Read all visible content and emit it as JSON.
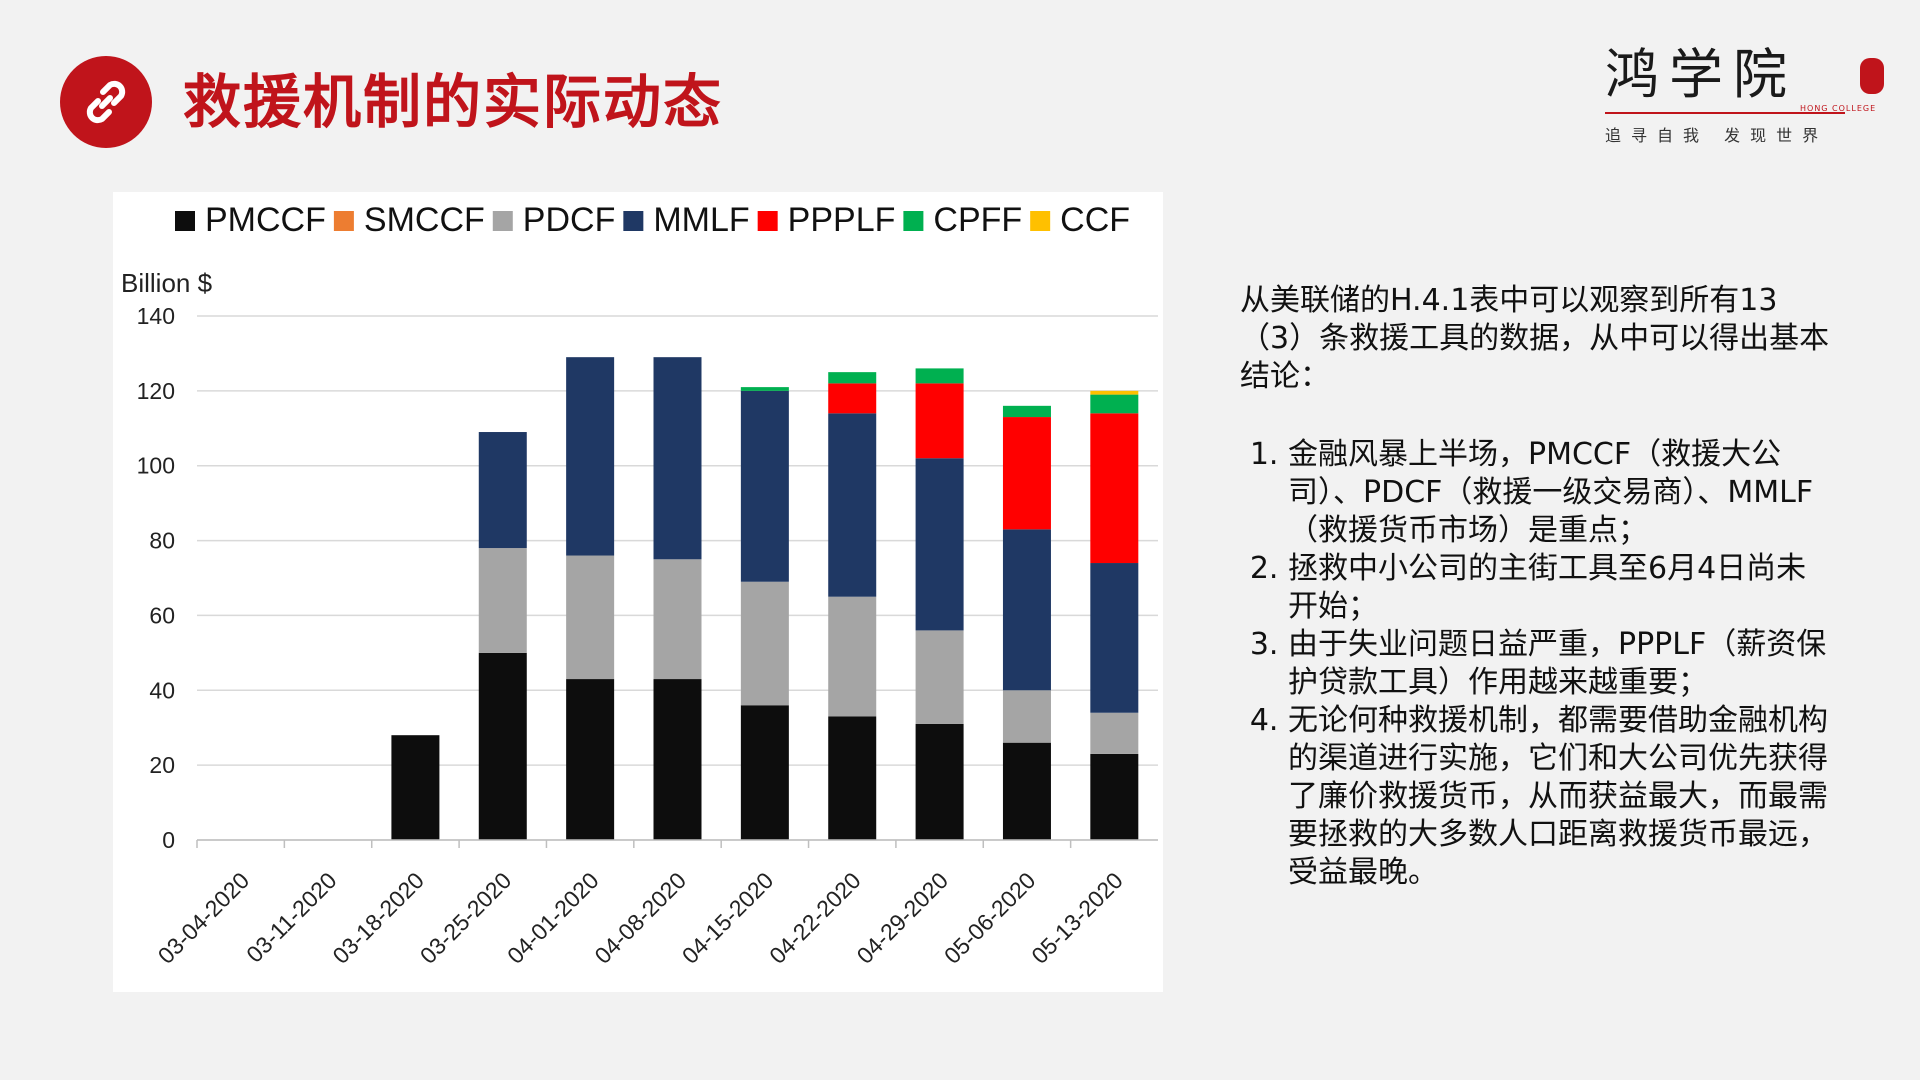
{
  "header": {
    "title": "救援机制的实际动态",
    "icon": "link-icon",
    "accent_color": "#c0141b"
  },
  "logo": {
    "name": "鸿学院",
    "sub": "HONG COLLEGE",
    "slogan": "追寻自我 发现世界"
  },
  "text": {
    "intro": "从美联储的H.4.1表中可以观察到所有13（3）条救援工具的数据，从中可以得出基本结论：",
    "points": [
      "金融风暴上半场，PMCCF（救援大公司）、PDCF（救援一级交易商）、MMLF（救援货币市场）是重点；",
      "拯救中小公司的主街工具至6月4日尚未开始；",
      "由于失业问题日益严重，PPPLF（薪资保护贷款工具）作用越来越重要；",
      "无论何种救援机制，都需要借助金融机构的渠道进行实施，它们和大公司优先获得了廉价救援货币，从而获益最大，而最需要拯救的大多数人口距离救援货币最远，受益最晚。"
    ]
  },
  "chart_data": {
    "type": "bar",
    "stacked": true,
    "ylabel": "Billion $",
    "ylim": [
      0,
      140
    ],
    "yticks": [
      0,
      20,
      40,
      60,
      80,
      100,
      120,
      140
    ],
    "legend_position": "top",
    "categories": [
      "03-04-2020",
      "03-11-2020",
      "03-18-2020",
      "03-25-2020",
      "04-01-2020",
      "04-08-2020",
      "04-15-2020",
      "04-22-2020",
      "04-29-2020",
      "05-06-2020",
      "05-13-2020"
    ],
    "series": [
      {
        "name": "PMCCF",
        "color": "#0d0d0d",
        "values": [
          0,
          0,
          28,
          50,
          43,
          43,
          36,
          33,
          31,
          26,
          23
        ]
      },
      {
        "name": "SMCCF",
        "color": "#ed7d31",
        "values": [
          0,
          0,
          0,
          0,
          0,
          0,
          0,
          0,
          0,
          0,
          0
        ]
      },
      {
        "name": "PDCF",
        "color": "#a5a5a5",
        "values": [
          0,
          0,
          0,
          28,
          33,
          32,
          33,
          32,
          25,
          14,
          11
        ]
      },
      {
        "name": "MMLF",
        "color": "#1f3864",
        "values": [
          0,
          0,
          0,
          31,
          53,
          54,
          51,
          49,
          46,
          43,
          40
        ]
      },
      {
        "name": "PPPLF",
        "color": "#ff0000",
        "values": [
          0,
          0,
          0,
          0,
          0,
          0,
          0,
          8,
          20,
          30,
          40
        ]
      },
      {
        "name": "CPFF",
        "color": "#00b050",
        "values": [
          0,
          0,
          0,
          0,
          0,
          0,
          1,
          3,
          4,
          3,
          5
        ]
      },
      {
        "name": "CCF",
        "color": "#ffc000",
        "values": [
          0,
          0,
          0,
          0,
          0,
          0,
          0,
          0,
          0,
          0,
          1
        ]
      }
    ]
  }
}
